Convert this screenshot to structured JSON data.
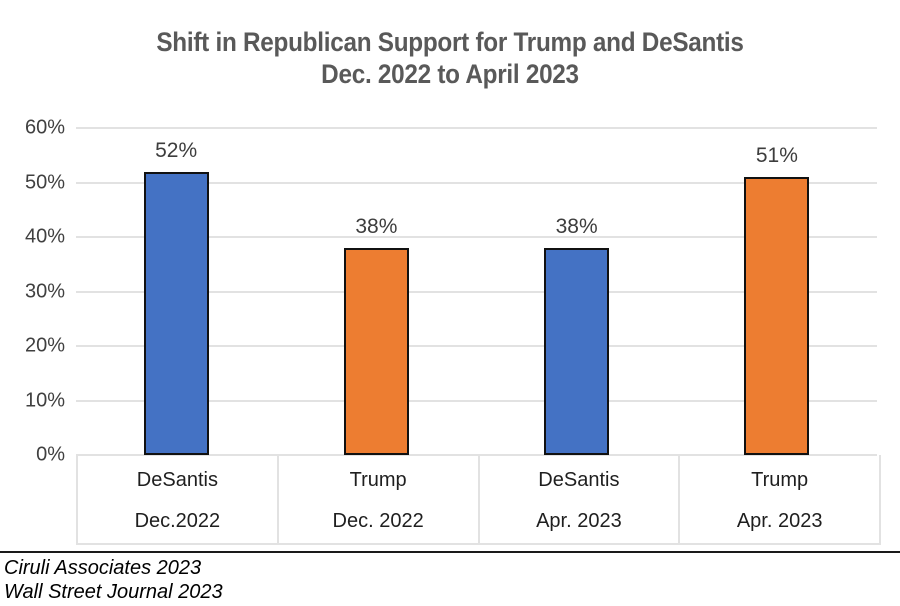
{
  "title": {
    "line1": "Shift in Republican Support for Trump and DeSantis",
    "line2": "Dec. 2022 to April 2023"
  },
  "chart_data": {
    "type": "bar",
    "categories": [
      {
        "name": "DeSantis",
        "period": "Dec.2022"
      },
      {
        "name": "Trump",
        "period": "Dec. 2022"
      },
      {
        "name": "DeSantis",
        "period": "Apr. 2023"
      },
      {
        "name": "Trump",
        "period": "Apr. 2023"
      }
    ],
    "values": [
      52,
      38,
      38,
      51
    ],
    "value_labels": [
      "52%",
      "38%",
      "38%",
      "51%"
    ],
    "bar_colors": [
      "#4472C4",
      "#ED7D31",
      "#4472C4",
      "#ED7D31"
    ],
    "bar_border_color": "#111111",
    "ylim": [
      0,
      60
    ],
    "ytick_labels": [
      "0%",
      "10%",
      "20%",
      "30%",
      "40%",
      "50%",
      "60%"
    ],
    "grid": true,
    "gridline_color": "#e2e2e2",
    "legend": "none",
    "title": "Shift in Republican Support for Trump and DeSantis Dec. 2022 to April 2023"
  },
  "footer": {
    "line1": "Ciruli Associates 2023",
    "line2": "Wall Street Journal 2023"
  }
}
